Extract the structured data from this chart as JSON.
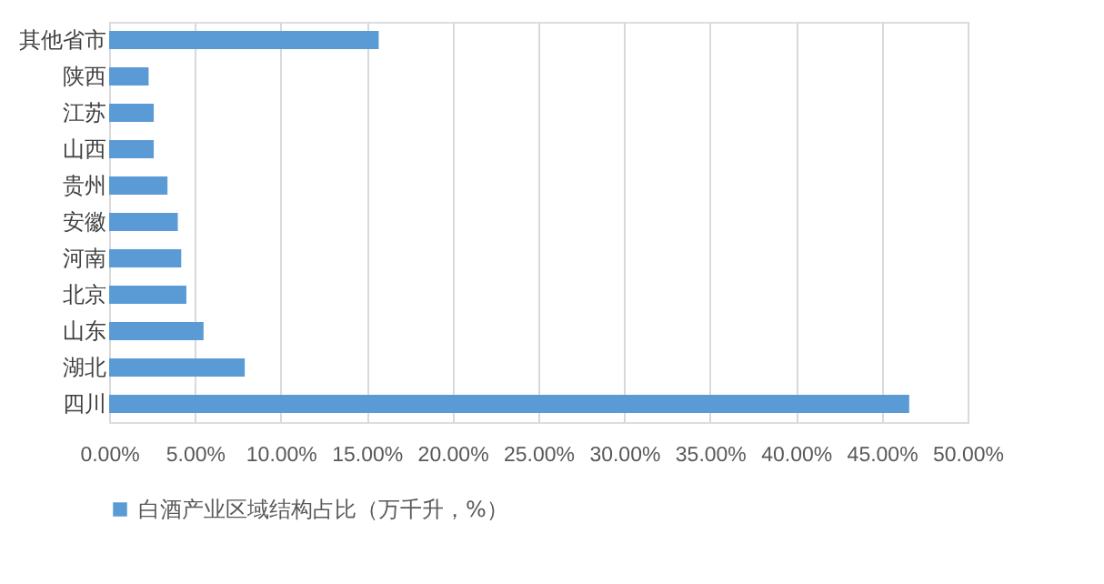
{
  "chart_data": {
    "type": "bar",
    "orientation": "horizontal",
    "categories": [
      "其他省市",
      "陕西",
      "江苏",
      "山西",
      "贵州",
      "安徽",
      "河南",
      "北京",
      "山东",
      "湖北",
      "四川"
    ],
    "series": [
      {
        "name": "白酒产业区域结构占比（万千升，%）",
        "color": "#5b9bd5",
        "values": [
          15.7,
          2.3,
          2.6,
          2.6,
          3.4,
          4.0,
          4.2,
          4.5,
          5.5,
          7.9,
          46.6
        ]
      }
    ],
    "xlim": [
      0,
      50
    ],
    "xticks": [
      {
        "value": 0,
        "label": "0.00%"
      },
      {
        "value": 5,
        "label": "5.00%"
      },
      {
        "value": 10,
        "label": "10.00%"
      },
      {
        "value": 15,
        "label": "15.00%"
      },
      {
        "value": 20,
        "label": "20.00%"
      },
      {
        "value": 25,
        "label": "25.00%"
      },
      {
        "value": 30,
        "label": "30.00%"
      },
      {
        "value": 35,
        "label": "35.00%"
      },
      {
        "value": 40,
        "label": "40.00%"
      },
      {
        "value": 45,
        "label": "45.00%"
      },
      {
        "value": 50,
        "label": "50.00%"
      }
    ],
    "grid": "x",
    "legend": "bottom"
  }
}
